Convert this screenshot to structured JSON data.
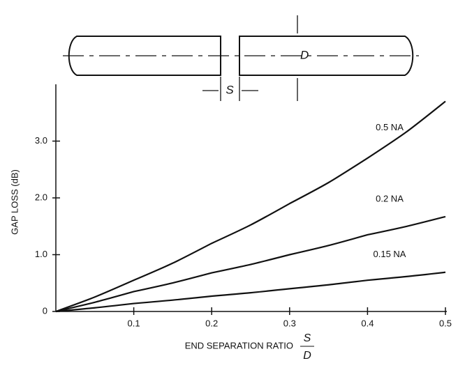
{
  "chart_data": {
    "type": "line",
    "diagram_labels": {
      "diameter": "D",
      "separation": "S"
    },
    "xlabel": "END SEPARATION RATIO",
    "xlabel_fraction": {
      "numerator": "S",
      "denominator": "D"
    },
    "ylabel": "GAP LOSS (dB)",
    "x": [
      0,
      0.1,
      0.2,
      0.3,
      0.4,
      0.5
    ],
    "series": [
      {
        "name": "0.5 NA",
        "color": "#111111",
        "values": [
          0,
          0.55,
          1.2,
          1.9,
          2.7,
          3.7
        ]
      },
      {
        "name": "0.2 NA",
        "color": "#111111",
        "values": [
          0,
          0.35,
          0.68,
          1.0,
          1.35,
          1.67
        ]
      },
      {
        "name": "0.15 NA",
        "color": "#111111",
        "values": [
          0,
          0.14,
          0.27,
          0.4,
          0.55,
          0.69
        ]
      }
    ],
    "xlim": [
      0,
      0.5
    ],
    "xticks": [
      0.1,
      0.2,
      0.3,
      0.4,
      0.5
    ],
    "ylim": [
      0,
      4
    ],
    "yticks": [
      0,
      {
        "value": 1,
        "label": "1.0"
      },
      {
        "value": 2,
        "label": "2.0"
      },
      {
        "value": 3,
        "label": "3.0"
      }
    ]
  }
}
